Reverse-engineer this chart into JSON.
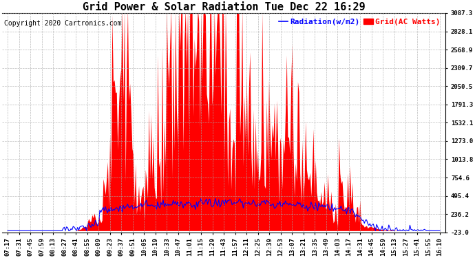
{
  "title": "Grid Power & Solar Radiation Tue Dec 22 16:29",
  "copyright": "Copyright 2020 Cartronics.com",
  "legend_radiation": "Radiation(w/m2)",
  "legend_grid": "Grid(AC Watts)",
  "y_min": -23.0,
  "y_max": 3087.3,
  "yticks": [
    3087.3,
    2828.1,
    2568.9,
    2309.7,
    2050.5,
    1791.3,
    1532.1,
    1273.0,
    1013.8,
    754.6,
    495.4,
    236.2,
    -23.0
  ],
  "radiation_color": "blue",
  "grid_color": "red",
  "background_color": "#ffffff",
  "title_fontsize": 11,
  "tick_fontsize": 6.5,
  "legend_fontsize": 8,
  "copyright_fontsize": 7,
  "x_labels": [
    "07:17",
    "07:31",
    "07:45",
    "07:59",
    "08:13",
    "08:27",
    "08:41",
    "08:55",
    "09:09",
    "09:23",
    "09:37",
    "09:51",
    "10:05",
    "10:19",
    "10:33",
    "10:47",
    "11:01",
    "11:15",
    "11:29",
    "11:43",
    "11:57",
    "12:11",
    "12:25",
    "12:39",
    "12:53",
    "13:07",
    "13:21",
    "13:35",
    "13:49",
    "14:03",
    "14:17",
    "14:31",
    "14:45",
    "14:59",
    "15:13",
    "15:27",
    "15:41",
    "15:55",
    "16:10"
  ]
}
